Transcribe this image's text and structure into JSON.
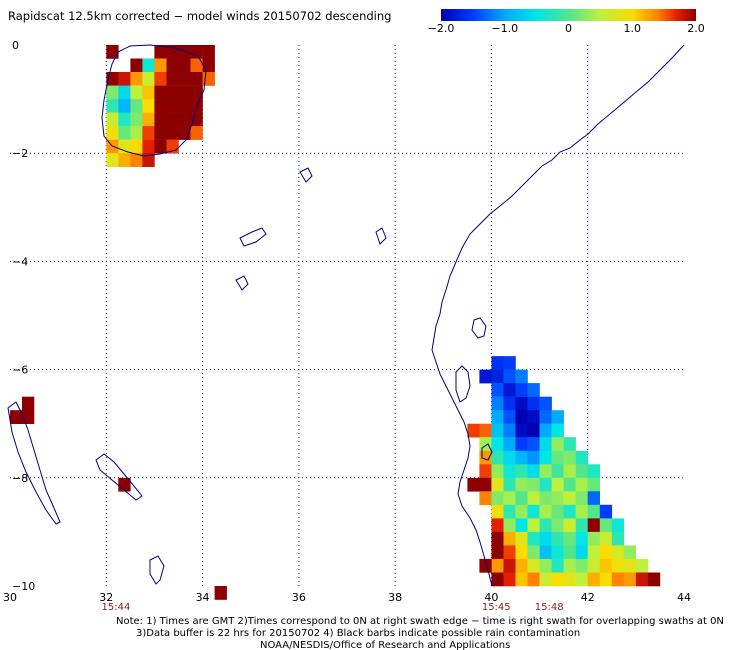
{
  "title": "Rapidscat 12.5km corrected − model winds 20150702 descending",
  "colorbar": {
    "tick_labels": [
      "−2.0",
      "−1.0",
      "0",
      "1.0",
      "2.0"
    ],
    "tick_values": [
      -2.0,
      -1.0,
      0,
      1.0,
      2.0
    ],
    "range": [
      -2.0,
      2.0
    ]
  },
  "axes": {
    "lon_range": [
      30,
      44
    ],
    "lat_range": [
      -10,
      0
    ],
    "lon_labels": [
      "30",
      "32",
      "34",
      "36",
      "38",
      "40",
      "42",
      "44"
    ],
    "lat_labels": [
      "0",
      "−2",
      "−4",
      "−6",
      "−8",
      "−10"
    ],
    "grid": "dotted"
  },
  "swath_times": [
    {
      "label": "15:44",
      "lon": 32.2
    },
    {
      "label": "15:45",
      "lon": 40.1
    },
    {
      "label": "15:48",
      "lon": 41.2
    }
  ],
  "notes": {
    "line1": "Note: 1) Times are GMT 2)Times correspond to 0N at right swath edge − time is right swath for overlapping swaths at 0N",
    "line2": "3)Data buffer is 22 hrs for 20150702 4) Black barbs indicate possible rain contamination",
    "line3": "NOAA/NESDIS/Office of Research and Applications"
  },
  "colors": {
    "coastline": "#000080",
    "grid": "#1a1a8a",
    "time_label": "#8b1a1a"
  },
  "cell_size_deg": 0.25,
  "swaths": [
    {
      "name": "west",
      "lon_start": 32.0,
      "lat_start": 0.0,
      "rows": [
        "....3333",
        "..3313.3",
        "33213333",
        "333333..",
        "33123333",
        "3321333.",
        "3321333.",
        "3321333.",
        "33213.3.",
        "3321...."
      ]
    },
    {
      "name": "east",
      "lon_start": 39.0,
      "lat_start": -5.75,
      "rows": [
        ".........",
        ".........",
        ".........",
        ".........",
        "..........",
        "..........",
        "..........",
        "..........",
        "..........",
        "..........",
        "..........",
        "..........",
        "..........",
        "..........",
        "..........",
        "..........",
        ".........",
        ".........",
        "..........",
        "..........",
        "..........",
        "......."
      ]
    }
  ],
  "east_cells": [
    [
      40.0,
      -5.75,
      -1.6
    ],
    [
      40.25,
      -5.75,
      -1.5
    ],
    [
      39.75,
      -6.0,
      -1.8
    ],
    [
      40.0,
      -6.0,
      -1.7
    ],
    [
      40.25,
      -6.0,
      -1.4
    ],
    [
      40.5,
      -6.0,
      -1.2
    ],
    [
      40.0,
      -6.25,
      -1.4
    ],
    [
      40.25,
      -6.25,
      -1.8
    ],
    [
      40.5,
      -6.25,
      -1.5
    ],
    [
      40.75,
      -6.25,
      -1.3
    ],
    [
      40.0,
      -6.5,
      -1.2
    ],
    [
      40.25,
      -6.5,
      -1.6
    ],
    [
      40.5,
      -6.5,
      -1.9
    ],
    [
      40.75,
      -6.5,
      -1.6
    ],
    [
      41.0,
      -6.5,
      -1.4
    ],
    [
      40.0,
      -6.75,
      -1.0
    ],
    [
      40.25,
      -6.75,
      -1.4
    ],
    [
      40.5,
      -6.75,
      -2.0
    ],
    [
      40.75,
      -6.75,
      -1.9
    ],
    [
      41.0,
      -6.75,
      -1.3
    ],
    [
      41.25,
      -6.75,
      -1.0
    ],
    [
      39.75,
      -7.0,
      1.5
    ],
    [
      40.0,
      -7.0,
      -0.8
    ],
    [
      40.25,
      -7.0,
      -1.2
    ],
    [
      40.5,
      -7.0,
      -1.9
    ],
    [
      40.75,
      -7.0,
      -2.0
    ],
    [
      41.0,
      -7.0,
      -1.0
    ],
    [
      41.25,
      -7.0,
      -0.5
    ],
    [
      39.75,
      -7.25,
      0.4
    ],
    [
      40.0,
      -7.25,
      -0.5
    ],
    [
      40.25,
      -7.25,
      -1.0
    ],
    [
      40.5,
      -7.25,
      -1.5
    ],
    [
      40.75,
      -7.25,
      -1.4
    ],
    [
      41.0,
      -7.25,
      -0.6
    ],
    [
      41.25,
      -7.25,
      0.3
    ],
    [
      41.5,
      -7.25,
      -0.2
    ],
    [
      39.75,
      -7.5,
      1.3
    ],
    [
      40.0,
      -7.5,
      -0.2
    ],
    [
      40.25,
      -7.5,
      -0.6
    ],
    [
      40.5,
      -7.5,
      -0.9
    ],
    [
      40.75,
      -7.5,
      -1.1
    ],
    [
      41.0,
      -7.5,
      -0.5
    ],
    [
      41.25,
      -7.5,
      0.1
    ],
    [
      41.5,
      -7.5,
      0.2
    ],
    [
      41.75,
      -7.5,
      -0.3
    ],
    [
      39.75,
      -7.75,
      1.6
    ],
    [
      40.0,
      -7.75,
      0.3
    ],
    [
      40.25,
      -7.75,
      -0.4
    ],
    [
      40.5,
      -7.75,
      -0.2
    ],
    [
      40.75,
      -7.75,
      -0.6
    ],
    [
      41.0,
      -7.75,
      0.3
    ],
    [
      41.25,
      -7.75,
      -0.1
    ],
    [
      41.5,
      -7.75,
      0.4
    ],
    [
      41.75,
      -7.75,
      0.0
    ],
    [
      42.0,
      -7.75,
      -0.3
    ],
    [
      39.75,
      -8.0,
      2.0
    ],
    [
      40.0,
      -8.0,
      0.8
    ],
    [
      40.25,
      -8.0,
      -0.2
    ],
    [
      40.5,
      -8.0,
      0.3
    ],
    [
      40.75,
      -8.0,
      0.2
    ],
    [
      41.0,
      -8.0,
      -0.3
    ],
    [
      41.25,
      -8.0,
      0.5
    ],
    [
      41.5,
      -8.0,
      0.0
    ],
    [
      41.75,
      -8.0,
      0.4
    ],
    [
      42.0,
      -8.0,
      0.1
    ],
    [
      39.75,
      -8.25,
      1.4
    ],
    [
      40.0,
      -8.25,
      0.2
    ],
    [
      40.25,
      -8.25,
      0.4
    ],
    [
      40.5,
      -8.25,
      0.0
    ],
    [
      40.75,
      -8.25,
      0.5
    ],
    [
      41.0,
      -8.25,
      0.2
    ],
    [
      41.25,
      -8.25,
      0.3
    ],
    [
      41.5,
      -8.25,
      0.5
    ],
    [
      41.75,
      -8.25,
      0.2
    ],
    [
      42.0,
      -8.25,
      -1.3
    ],
    [
      40.0,
      -8.5,
      0.9
    ],
    [
      40.25,
      -8.5,
      -0.2
    ],
    [
      40.5,
      -8.5,
      0.3
    ],
    [
      40.75,
      -8.5,
      -0.4
    ],
    [
      41.0,
      -8.5,
      0.4
    ],
    [
      41.25,
      -8.5,
      0.1
    ],
    [
      41.5,
      -8.5,
      -0.3
    ],
    [
      41.75,
      -8.5,
      0.4
    ],
    [
      42.0,
      -8.5,
      0.0
    ],
    [
      42.25,
      -8.5,
      -1.5
    ],
    [
      40.0,
      -8.75,
      1.7
    ],
    [
      40.25,
      -8.75,
      0.3
    ],
    [
      40.5,
      -8.75,
      -0.5
    ],
    [
      40.75,
      -8.75,
      0.5
    ],
    [
      41.0,
      -8.75,
      -0.2
    ],
    [
      41.25,
      -8.75,
      0.2
    ],
    [
      41.5,
      -8.75,
      0.6
    ],
    [
      41.75,
      -8.75,
      -0.2
    ],
    [
      42.0,
      -8.75,
      2.0
    ],
    [
      42.25,
      -8.75,
      0.1
    ],
    [
      42.5,
      -8.75,
      -0.4
    ],
    [
      40.0,
      -9.0,
      2.0
    ],
    [
      40.25,
      -9.0,
      1.2
    ],
    [
      40.5,
      -9.0,
      0.8
    ],
    [
      40.75,
      -9.0,
      -0.3
    ],
    [
      41.0,
      -9.0,
      -0.6
    ],
    [
      41.25,
      -9.0,
      -0.2
    ],
    [
      41.5,
      -9.0,
      0.1
    ],
    [
      41.75,
      -9.0,
      -0.5
    ],
    [
      42.0,
      -9.0,
      0.3
    ],
    [
      42.25,
      -9.0,
      0.6
    ],
    [
      42.5,
      -9.0,
      -0.2
    ],
    [
      40.0,
      -9.25,
      2.0
    ],
    [
      40.25,
      -9.25,
      1.6
    ],
    [
      40.5,
      -9.25,
      1.0
    ],
    [
      40.75,
      -9.25,
      0.2
    ],
    [
      41.0,
      -9.25,
      -0.8
    ],
    [
      41.25,
      -9.25,
      -0.4
    ],
    [
      41.5,
      -9.25,
      0.0
    ],
    [
      41.75,
      -9.25,
      -0.6
    ],
    [
      42.0,
      -9.25,
      0.5
    ],
    [
      42.25,
      -9.25,
      1.0
    ],
    [
      42.5,
      -9.25,
      0.7
    ],
    [
      42.75,
      -9.25,
      0.3
    ],
    [
      40.0,
      -9.5,
      1.3
    ],
    [
      40.25,
      -9.5,
      1.8
    ],
    [
      40.5,
      -9.5,
      1.2
    ],
    [
      40.75,
      -9.5,
      0.7
    ],
    [
      41.0,
      -9.5,
      0.3
    ],
    [
      41.25,
      -9.5,
      -0.3
    ],
    [
      41.5,
      -9.5,
      0.4
    ],
    [
      41.75,
      -9.5,
      0.2
    ],
    [
      42.0,
      -9.5,
      0.6
    ],
    [
      42.25,
      -9.5,
      1.1
    ],
    [
      42.5,
      -9.5,
      0.9
    ],
    [
      42.75,
      -9.5,
      0.8
    ],
    [
      43.0,
      -9.5,
      0.5
    ],
    [
      40.0,
      -9.75,
      2.0
    ],
    [
      40.25,
      -9.75,
      1.7
    ],
    [
      40.5,
      -9.75,
      1.1
    ],
    [
      40.75,
      -9.75,
      1.4
    ],
    [
      41.0,
      -9.75,
      0.6
    ],
    [
      41.25,
      -9.75,
      1.0
    ],
    [
      41.5,
      -9.75,
      0.8
    ],
    [
      41.75,
      -9.75,
      0.5
    ],
    [
      42.0,
      -9.75,
      1.2
    ],
    [
      42.25,
      -9.75,
      1.0
    ],
    [
      42.5,
      -9.75,
      1.4
    ],
    [
      42.75,
      -9.75,
      1.3
    ],
    [
      43.0,
      -9.75,
      1.8
    ],
    [
      43.25,
      -9.75,
      2.0
    ],
    [
      39.75,
      -9.5,
      2.0
    ],
    [
      39.5,
      -8.0,
      2.0
    ],
    [
      39.5,
      -7.0,
      1.6
    ]
  ],
  "west_cells": [
    [
      32.0,
      0.0,
      2.0
    ],
    [
      32.25,
      -0.5,
      2.0
    ],
    [
      33.0,
      0.0,
      2.0
    ],
    [
      33.25,
      0.0,
      2.0
    ],
    [
      33.5,
      0.0,
      2.0
    ],
    [
      33.75,
      0.0,
      2.0
    ],
    [
      34.0,
      0.0,
      2.0
    ],
    [
      32.5,
      -0.25,
      2.0
    ],
    [
      32.75,
      -0.25,
      -0.4
    ],
    [
      33.0,
      -0.25,
      1.3
    ],
    [
      33.25,
      -0.25,
      2.0
    ],
    [
      33.5,
      -0.25,
      2.0
    ],
    [
      33.75,
      -0.25,
      1.5
    ],
    [
      34.0,
      -0.25,
      2.0
    ],
    [
      32.0,
      -0.5,
      2.0
    ],
    [
      32.25,
      -0.5,
      1.8
    ],
    [
      32.5,
      -0.5,
      1.3
    ],
    [
      32.75,
      -0.5,
      0.6
    ],
    [
      33.0,
      -0.5,
      1.6
    ],
    [
      33.25,
      -0.5,
      2.0
    ],
    [
      33.5,
      -0.5,
      2.0
    ],
    [
      33.75,
      -0.5,
      2.0
    ],
    [
      34.0,
      -0.5,
      1.5
    ],
    [
      32.0,
      -0.75,
      0.2
    ],
    [
      32.25,
      -0.75,
      -0.6
    ],
    [
      32.5,
      -0.75,
      0.5
    ],
    [
      32.75,
      -0.75,
      1.1
    ],
    [
      33.0,
      -0.75,
      2.0
    ],
    [
      33.25,
      -0.75,
      2.0
    ],
    [
      33.5,
      -0.75,
      2.0
    ],
    [
      33.75,
      -0.75,
      2.0
    ],
    [
      32.0,
      -1.0,
      -0.2
    ],
    [
      32.25,
      -1.0,
      -0.9
    ],
    [
      32.5,
      -1.0,
      0.1
    ],
    [
      32.75,
      -1.0,
      1.0
    ],
    [
      33.0,
      -1.0,
      2.0
    ],
    [
      33.25,
      -1.0,
      2.0
    ],
    [
      33.5,
      -1.0,
      2.0
    ],
    [
      33.75,
      -1.0,
      2.0
    ],
    [
      32.0,
      -1.25,
      0.6
    ],
    [
      32.25,
      -1.25,
      -0.3
    ],
    [
      32.5,
      -1.25,
      0.2
    ],
    [
      32.75,
      -1.25,
      1.2
    ],
    [
      33.0,
      -1.25,
      2.0
    ],
    [
      33.25,
      -1.25,
      2.0
    ],
    [
      33.5,
      -1.25,
      2.0
    ],
    [
      33.75,
      -1.25,
      2.0
    ],
    [
      32.0,
      -1.5,
      0.9
    ],
    [
      32.25,
      -1.5,
      0.1
    ],
    [
      32.5,
      -1.5,
      0.4
    ],
    [
      32.75,
      -1.5,
      1.6
    ],
    [
      33.0,
      -1.5,
      2.0
    ],
    [
      33.25,
      -1.5,
      2.0
    ],
    [
      33.5,
      -1.5,
      2.0
    ],
    [
      33.75,
      -1.5,
      1.5
    ],
    [
      32.0,
      -1.75,
      1.3
    ],
    [
      32.25,
      -1.75,
      0.8
    ],
    [
      32.5,
      -1.75,
      1.0
    ],
    [
      32.75,
      -1.75,
      1.7
    ],
    [
      33.0,
      -1.75,
      2.0
    ],
    [
      33.25,
      -1.75,
      1.6
    ],
    [
      32.0,
      -2.0,
      0.8
    ],
    [
      32.25,
      -2.0,
      1.2
    ],
    [
      32.5,
      -2.0,
      1.4
    ],
    [
      32.75,
      -2.0,
      1.8
    ]
  ],
  "isolated_cells": [
    [
      30.0,
      -6.75,
      2.0
    ],
    [
      30.25,
      -6.75,
      2.0
    ],
    [
      30.25,
      -6.5,
      2.0
    ],
    [
      32.25,
      -8.0,
      2.0
    ],
    [
      34.25,
      -10.0,
      2.0
    ]
  ]
}
